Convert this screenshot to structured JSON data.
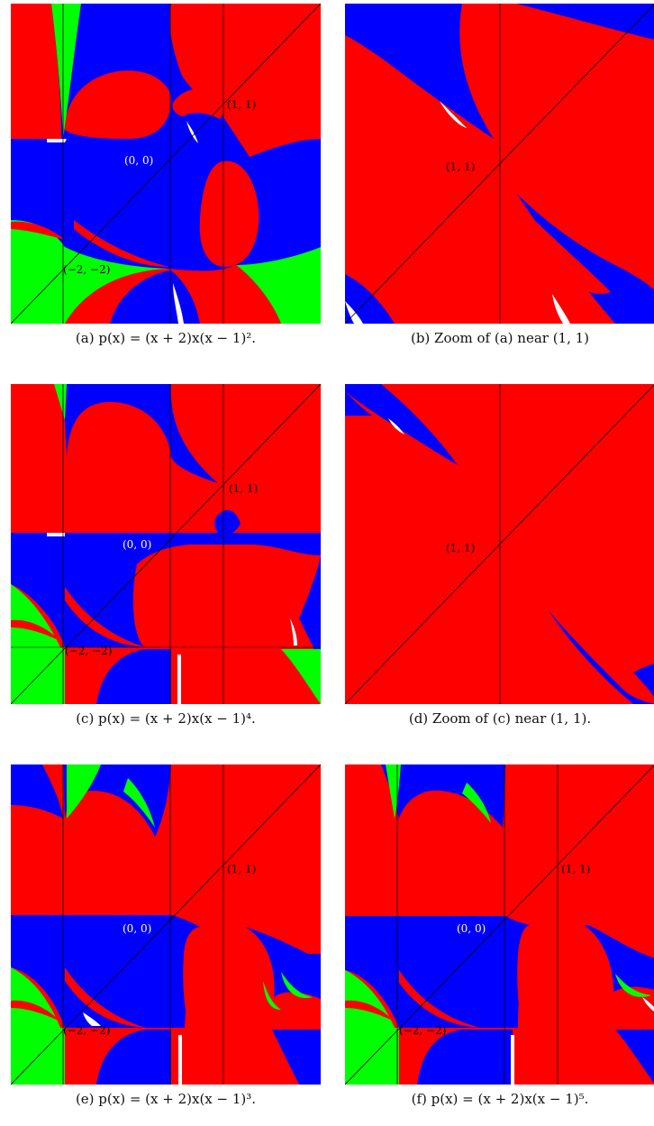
{
  "colors": {
    "red": "#ff0000",
    "blue": "#0000ff",
    "green": "#00ff00",
    "white": "#ffffff",
    "line": "#000000"
  },
  "panels": [
    {
      "id": "a",
      "caption": "(a)  p(x) = (x + 2)x(x − 1)².",
      "labels": [
        {
          "text": "(1, 1)",
          "color": "#000000"
        },
        {
          "text": "(0, 0)",
          "color": "#ffffff"
        },
        {
          "text": "(−2, −2)",
          "color": "#000000"
        }
      ]
    },
    {
      "id": "b",
      "caption": "(b)  Zoom of (a) near (1, 1)",
      "labels": [
        {
          "text": "(1, 1)",
          "color": "#000000"
        }
      ]
    },
    {
      "id": "c",
      "caption": "(c)  p(x) = (x + 2)x(x − 1)⁴.",
      "labels": [
        {
          "text": "(1, 1)",
          "color": "#000000"
        },
        {
          "text": "(0, 0)",
          "color": "#ffffff"
        },
        {
          "text": "(−2, −2)",
          "color": "#000000"
        }
      ]
    },
    {
      "id": "d",
      "caption": "(d)  Zoom of (c) near (1, 1).",
      "labels": [
        {
          "text": "(1, 1)",
          "color": "#000000"
        }
      ]
    },
    {
      "id": "e",
      "caption": "(e)  p(x) = (x + 2)x(x − 1)³.",
      "labels": [
        {
          "text": "(1, 1)",
          "color": "#000000"
        },
        {
          "text": "(0, 0)",
          "color": "#ffffff"
        },
        {
          "text": "(−2, −2)",
          "color": "#000000"
        }
      ]
    },
    {
      "id": "f",
      "caption": "(f)  p(x) = (x + 2)x(x − 1)⁵.",
      "labels": [
        {
          "text": "(1, 1)",
          "color": "#000000"
        },
        {
          "text": "(0, 0)",
          "color": "#ffffff"
        },
        {
          "text": "(−2, −2)",
          "color": "#000000"
        }
      ]
    }
  ]
}
